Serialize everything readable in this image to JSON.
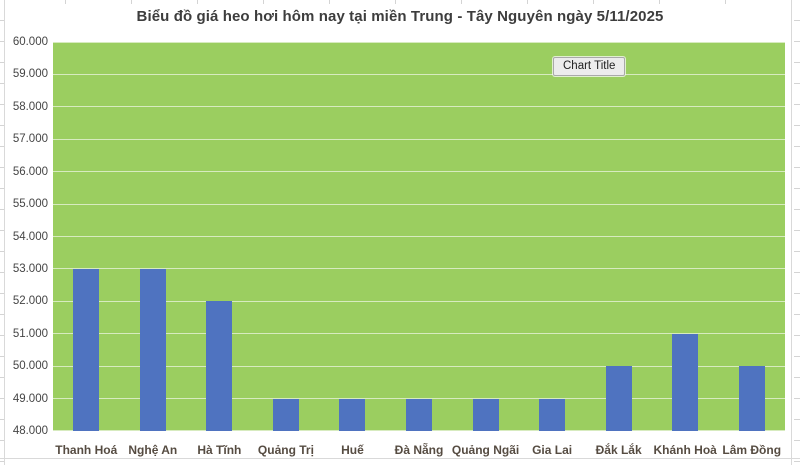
{
  "header": {
    "title": "Biểu đồ giá heo hơi hôm nay tại miền Trung - Tây Nguyên ngày 5/11/2025"
  },
  "tooltip": {
    "label": "Chart Title"
  },
  "colors": {
    "bar": "#4f73c0",
    "plot_background": "#9bce60",
    "gridline": "rgba(255,255,255,0.6)",
    "title_text": "#3d3d3d",
    "y_axis_text": "#454545",
    "x_axis_text": "#564c42"
  },
  "chart_data": {
    "type": "bar",
    "title": "Biểu đồ giá heo hơi hôm nay tại miền Trung - Tây Nguyên ngày 5/11/2025",
    "categories": [
      "Thanh Hoá",
      "Nghệ An",
      "Hà Tĩnh",
      "Quảng Trị",
      "Huế",
      "Đà Nẵng",
      "Quảng Ngãi",
      "Gia Lai",
      "Đắk Lắk",
      "Khánh Hoà",
      "Lâm Đồng"
    ],
    "values": [
      53000,
      53000,
      52000,
      49000,
      49000,
      49000,
      49000,
      49000,
      50000,
      51000,
      50000
    ],
    "xlabel": "",
    "ylabel": "",
    "ylim": [
      48000,
      60000
    ],
    "ytick_step": 1000,
    "ytick_labels": [
      "48.000",
      "49.000",
      "50.000",
      "51.000",
      "52.000",
      "53.000",
      "54.000",
      "55.000",
      "56.000",
      "57.000",
      "58.000",
      "59.000",
      "60.000"
    ],
    "grid": true,
    "legend_position": "none"
  }
}
